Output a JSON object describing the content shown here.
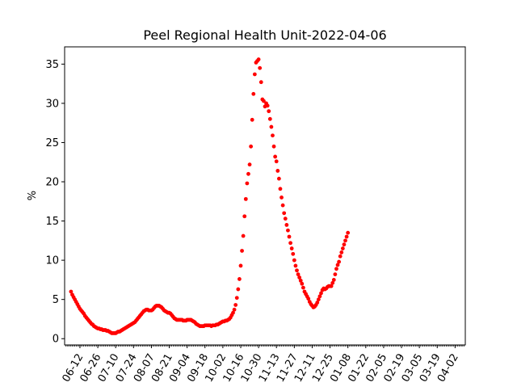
{
  "chart_data": {
    "type": "scatter",
    "title": "Peel Regional Health Unit-2022-04-06",
    "xlabel": "",
    "ylabel": "%",
    "x_start": "2021-06-05",
    "x_end": "2022-04-06",
    "xlim": [
      "2021-05-31",
      "2022-04-10"
    ],
    "ylim": [
      -0.8,
      37.2
    ],
    "yticks": [
      0,
      5,
      10,
      15,
      20,
      25,
      30,
      35
    ],
    "xtick_dates": [
      "2021-06-12",
      "2021-06-26",
      "2021-07-10",
      "2021-07-24",
      "2021-08-07",
      "2021-08-21",
      "2021-09-04",
      "2021-09-18",
      "2021-10-02",
      "2021-10-16",
      "2021-10-30",
      "2021-11-13",
      "2021-11-27",
      "2021-12-11",
      "2021-12-25",
      "2022-01-08",
      "2022-01-22",
      "2022-02-05",
      "2022-02-19",
      "2022-03-05",
      "2022-03-19",
      "2022-04-02"
    ],
    "xtick_labels": [
      "06-12",
      "06-26",
      "07-10",
      "07-24",
      "08-07",
      "08-21",
      "09-04",
      "09-18",
      "10-02",
      "10-16",
      "10-30",
      "11-13",
      "11-27",
      "12-11",
      "12-25",
      "01-08",
      "01-22",
      "02-05",
      "02-19",
      "03-05",
      "03-19",
      "04-02"
    ],
    "grid": false,
    "colors": {
      "marker": "#ff0000",
      "axes": "#000000",
      "background": "#ffffff"
    },
    "series": [
      {
        "values": [
          6.0,
          5.6,
          5.3,
          5.0,
          4.7,
          4.4,
          4.1,
          3.8,
          3.6,
          3.4,
          3.2,
          2.9,
          2.7,
          2.5,
          2.3,
          2.1,
          1.9,
          1.8,
          1.6,
          1.5,
          1.4,
          1.3,
          1.3,
          1.2,
          1.2,
          1.1,
          1.1,
          1.1,
          1.0,
          1.0,
          0.9,
          0.8,
          0.7,
          0.7,
          0.7,
          0.7,
          0.8,
          0.9,
          0.9,
          1.0,
          1.1,
          1.2,
          1.3,
          1.4,
          1.5,
          1.6,
          1.7,
          1.8,
          1.9,
          2.0,
          2.1,
          2.3,
          2.5,
          2.7,
          2.9,
          3.1,
          3.3,
          3.5,
          3.6,
          3.7,
          3.7,
          3.6,
          3.6,
          3.6,
          3.7,
          3.9,
          4.1,
          4.2,
          4.2,
          4.2,
          4.1,
          4.0,
          3.8,
          3.6,
          3.5,
          3.4,
          3.3,
          3.3,
          3.2,
          3.0,
          2.8,
          2.6,
          2.5,
          2.4,
          2.4,
          2.4,
          2.4,
          2.4,
          2.3,
          2.3,
          2.3,
          2.4,
          2.4,
          2.4,
          2.4,
          2.3,
          2.2,
          2.1,
          1.9,
          1.8,
          1.7,
          1.6,
          1.6,
          1.6,
          1.6,
          1.7,
          1.7,
          1.7,
          1.7,
          1.7,
          1.6,
          1.7,
          1.7,
          1.7,
          1.8,
          1.8,
          1.9,
          2.0,
          2.1,
          2.2,
          2.2,
          2.3,
          2.3,
          2.4,
          2.5,
          2.7,
          3.0,
          3.3,
          3.7,
          4.3,
          5.2,
          6.3,
          7.6,
          9.3,
          11.2,
          13.1,
          15.6,
          17.8,
          19.8,
          21.0,
          22.2,
          24.5,
          27.9,
          31.2,
          33.7,
          35.2,
          35.4,
          35.6,
          34.5,
          32.7,
          30.5,
          30.3,
          29.6,
          30.0,
          29.7,
          29.0,
          28.0,
          27.0,
          25.9,
          24.5,
          23.2,
          22.6,
          21.4,
          20.4,
          19.1,
          18.0,
          17.0,
          16.0,
          15.3,
          14.5,
          13.8,
          13.0,
          12.2,
          11.5,
          10.8,
          10.0,
          9.3,
          8.7,
          8.2,
          7.8,
          7.4,
          7.0,
          6.5,
          6.0,
          5.7,
          5.4,
          5.1,
          4.7,
          4.4,
          4.2,
          4.0,
          4.1,
          4.3,
          4.6,
          5.0,
          5.4,
          5.8,
          6.2,
          6.4,
          6.3,
          6.4,
          6.6,
          6.7,
          6.7,
          6.7,
          7.1,
          7.5,
          8.2,
          8.9,
          9.4,
          9.8,
          10.5,
          11.0,
          11.5,
          12.0,
          12.5,
          13.0,
          13.5
        ]
      }
    ]
  }
}
